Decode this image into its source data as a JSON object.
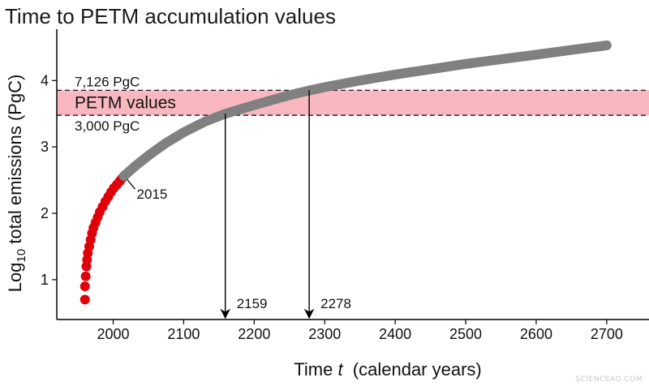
{
  "chart_data": {
    "type": "line",
    "title": "Time to PETM accumulation values",
    "ylabel": {
      "prefix": "Log",
      "sub": "10",
      "suffix": " total emissions (PgC)"
    },
    "xlabel": {
      "prefix": "Time ",
      "var": "t",
      "suffix": "  (calendar years)"
    },
    "xlim": [
      1920,
      2760
    ],
    "ylim": [
      0.4,
      4.7
    ],
    "x_ticks": [
      2000,
      2100,
      2200,
      2300,
      2400,
      2500,
      2600,
      2700
    ],
    "y_ticks": [
      1,
      2,
      3,
      4
    ],
    "series": [
      {
        "color": "#e0000a",
        "style": "dots",
        "x": [
          1960,
          1960,
          1961,
          1962,
          1963,
          1964,
          1966,
          1968,
          1970,
          1972,
          1975,
          1978,
          1981,
          1985,
          1989,
          1993,
          1997,
          2001,
          2005,
          2009,
          2012,
          2015
        ],
        "y": [
          0.7,
          0.9,
          1.05,
          1.2,
          1.3,
          1.4,
          1.5,
          1.6,
          1.7,
          1.78,
          1.86,
          1.94,
          2.02,
          2.1,
          2.18,
          2.25,
          2.32,
          2.38,
          2.43,
          2.48,
          2.52,
          2.56
        ]
      },
      {
        "color": "#808080",
        "style": "thick-line",
        "x": [
          2015,
          2030,
          2050,
          2075,
          2100,
          2130,
          2159,
          2200,
          2250,
          2278,
          2300,
          2350,
          2400,
          2450,
          2500,
          2550,
          2600,
          2650,
          2700
        ],
        "y": [
          2.56,
          2.7,
          2.87,
          3.06,
          3.22,
          3.38,
          3.5,
          3.63,
          3.78,
          3.85,
          3.9,
          4.0,
          4.09,
          4.17,
          4.25,
          4.32,
          4.39,
          4.46,
          4.53
        ]
      }
    ],
    "band": {
      "label": "PETM values",
      "y_low": 3.477,
      "y_high": 3.853,
      "color": "#f9b8c0"
    },
    "band_labels": {
      "upper": "7,126 PgC",
      "lower": "3,000 PgC"
    },
    "annotations": [
      {
        "text": "2015",
        "x": 2015,
        "y": 2.56
      },
      {
        "text": "2159",
        "x": 2159,
        "y": 3.5
      },
      {
        "text": "2278",
        "x": 2278,
        "y": 3.853
      }
    ],
    "grid": false
  },
  "watermark": "SCIENCEAQ.COM"
}
